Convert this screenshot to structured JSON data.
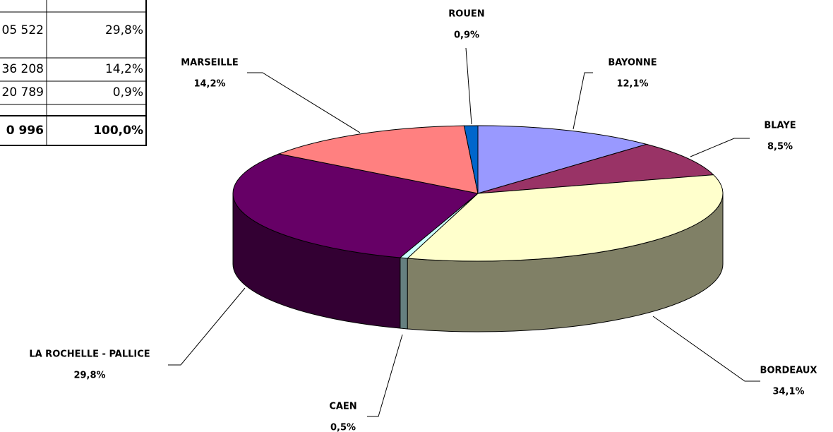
{
  "table": {
    "rows": [
      [
        "05 522",
        "29,8%"
      ],
      [
        "36 208",
        "14,2%"
      ],
      [
        "20 789",
        "0,9%"
      ],
      [
        "0 996",
        "100,0%"
      ]
    ]
  },
  "chart_data": {
    "type": "pie3d",
    "categories": [
      "BAYONNE",
      "BLAYE",
      "BORDEAUX",
      "CAEN",
      "LA ROCHELLE - PALLICE",
      "MARSEILLE",
      "ROUEN"
    ],
    "values": [
      12.1,
      8.5,
      34.1,
      0.5,
      29.8,
      14.2,
      0.9
    ],
    "value_labels": [
      "12,1%",
      "8,5%",
      "34,1%",
      "0,5%",
      "29,8%",
      "14,2%",
      "0,9%"
    ],
    "colors": [
      "#9999ff",
      "#993366",
      "#ffffcc",
      "#ccffff",
      "#660066",
      "#ff8080",
      "#0066cc"
    ]
  }
}
